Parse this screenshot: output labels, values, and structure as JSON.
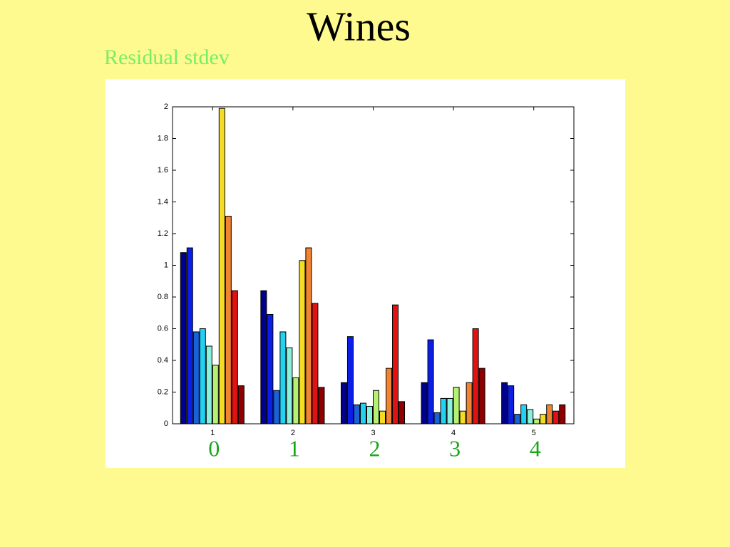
{
  "chart_data": {
    "type": "bar",
    "title": "Wines",
    "subtitle": "Residual stdev",
    "categories": [
      "1",
      "2",
      "3",
      "4",
      "5"
    ],
    "annotations": [
      "0",
      "1",
      "2",
      "3",
      "4"
    ],
    "series": [
      {
        "color": "#00008c",
        "values": [
          1.08,
          0.84,
          0.26,
          0.26,
          0.26
        ]
      },
      {
        "color": "#0a1ee6",
        "values": [
          1.11,
          0.69,
          0.55,
          0.53,
          0.24
        ]
      },
      {
        "color": "#1a62d8",
        "values": [
          0.58,
          0.21,
          0.12,
          0.07,
          0.06
        ]
      },
      {
        "color": "#22d2f0",
        "values": [
          0.6,
          0.58,
          0.13,
          0.16,
          0.12
        ]
      },
      {
        "color": "#8af2dc",
        "values": [
          0.49,
          0.48,
          0.11,
          0.16,
          0.09
        ]
      },
      {
        "color": "#b6f272",
        "values": [
          0.37,
          0.29,
          0.21,
          0.23,
          0.03
        ]
      },
      {
        "color": "#f4dc22",
        "values": [
          1.99,
          1.03,
          0.08,
          0.08,
          0.06
        ]
      },
      {
        "color": "#f08432",
        "values": [
          1.31,
          1.11,
          0.35,
          0.26,
          0.12
        ]
      },
      {
        "color": "#e21212",
        "values": [
          0.84,
          0.76,
          0.75,
          0.6,
          0.08
        ]
      },
      {
        "color": "#8e0000",
        "values": [
          0.24,
          0.23,
          0.14,
          0.35,
          0.12
        ]
      }
    ],
    "ylim": [
      0,
      2
    ],
    "yticks": [
      0,
      0.2,
      0.4,
      0.6,
      0.8,
      1,
      1.2,
      1.4,
      1.6,
      1.8,
      2
    ]
  }
}
